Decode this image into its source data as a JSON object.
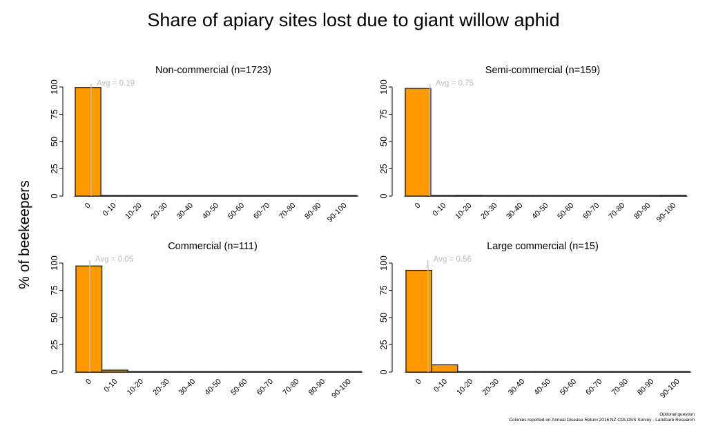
{
  "title": "Share of apiary sites lost due to giant willow aphid",
  "ylabel": "% of beekeepers",
  "footnotes": [
    "Optional question",
    "Colonies reported on Annual Disease Return 2016 NZ COLOSS Survey - Landcare Research"
  ],
  "colors": {
    "bar": "#FF9900",
    "bar_stroke": "#1a1a1a",
    "avg_line": "#bfbfbf",
    "avg_text": "#bdbdbd"
  },
  "chart_data": [
    {
      "type": "bar",
      "title": "Non-commercial (n=1723)",
      "categories": [
        "0",
        "0-10",
        "10-20",
        "20-30",
        "30-40",
        "40-50",
        "50-60",
        "60-70",
        "70-80",
        "80-90",
        "90-100"
      ],
      "values": [
        99.5,
        0.1,
        0.1,
        0.1,
        0.3,
        0.1,
        0.1,
        0.1,
        0.1,
        0.1,
        0.2
      ],
      "avg_label": "Avg = 0.19",
      "avg": 0.19,
      "ylim": [
        0,
        100
      ],
      "yticks": [
        0,
        25,
        50,
        75,
        100
      ]
    },
    {
      "type": "bar",
      "title": "Semi-commercial (n=159)",
      "categories": [
        "0",
        "0-10",
        "10-20",
        "20-30",
        "30-40",
        "40-50",
        "50-60",
        "60-70",
        "70-80",
        "80-90",
        "90-100"
      ],
      "values": [
        98.7,
        0,
        0.6,
        0,
        0,
        0,
        0,
        0,
        0,
        0,
        0.6
      ],
      "avg_label": "Avg = 0.75",
      "avg": 0.75,
      "ylim": [
        0,
        100
      ],
      "yticks": [
        0,
        25,
        50,
        75,
        100
      ]
    },
    {
      "type": "bar",
      "title": "Commercial (n=111)",
      "categories": [
        "0",
        "0-10",
        "10-20",
        "20-30",
        "30-40",
        "40-50",
        "50-60",
        "60-70",
        "70-80",
        "80-90",
        "90-100"
      ],
      "values": [
        97.3,
        1.8,
        0,
        0,
        0,
        0,
        0,
        0,
        0,
        0,
        0
      ],
      "avg_label": "Avg = 0.05",
      "avg": 0.05,
      "ylim": [
        0,
        100
      ],
      "yticks": [
        0,
        25,
        50,
        75,
        100
      ]
    },
    {
      "type": "bar",
      "title": "Large commercial (n=15)",
      "categories": [
        "0",
        "0-10",
        "10-20",
        "20-30",
        "30-40",
        "40-50",
        "50-60",
        "60-70",
        "70-80",
        "80-90",
        "90-100"
      ],
      "values": [
        93.3,
        6.7,
        0,
        0,
        0,
        0,
        0,
        0,
        0,
        0,
        0
      ],
      "avg_label": "Avg = 0.56",
      "avg": 0.56,
      "ylim": [
        0,
        100
      ],
      "yticks": [
        0,
        25,
        50,
        75,
        100
      ]
    }
  ]
}
